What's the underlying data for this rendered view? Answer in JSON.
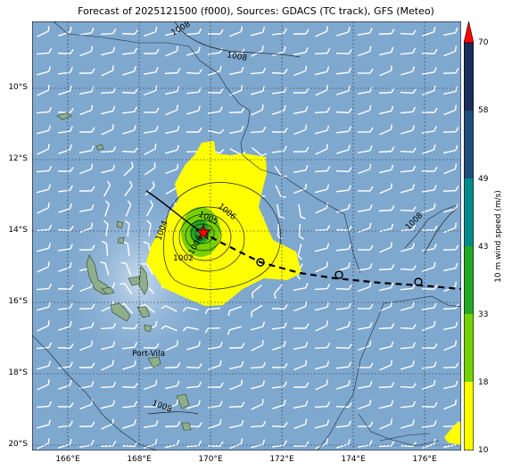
{
  "title": "Forecast of 2025121500 (f000), Sources: GDACS (TC track), GFS (Meteo)",
  "lat_labels": [
    "10°S",
    "12°S",
    "14°S",
    "16°S",
    "18°S",
    "20°S"
  ],
  "lon_labels": [
    "166°E",
    "168°E",
    "170°E",
    "172°E",
    "174°E",
    "176°E"
  ],
  "place_label": "Port-Vila",
  "contour_labels": [
    "1008",
    "1008",
    "1006",
    "1005",
    "1004",
    "1002",
    "1000",
    "1008",
    "1008"
  ],
  "colorbar": {
    "title": "10 m wind speed (m/s)",
    "ticks": [
      "70",
      "58",
      "49",
      "43",
      "33",
      "18",
      "10"
    ],
    "colors": [
      "#ff0000",
      "#1c2e5a",
      "#1f4e79",
      "#008b8b",
      "#22a822",
      "#76d100",
      "#ffff00"
    ]
  },
  "colors": {
    "ocean": "#7fa8cf",
    "wind_area": "#ffff00",
    "storm_core": "#4caf2a",
    "track": "#000000",
    "current_position": "#ff0000"
  }
}
